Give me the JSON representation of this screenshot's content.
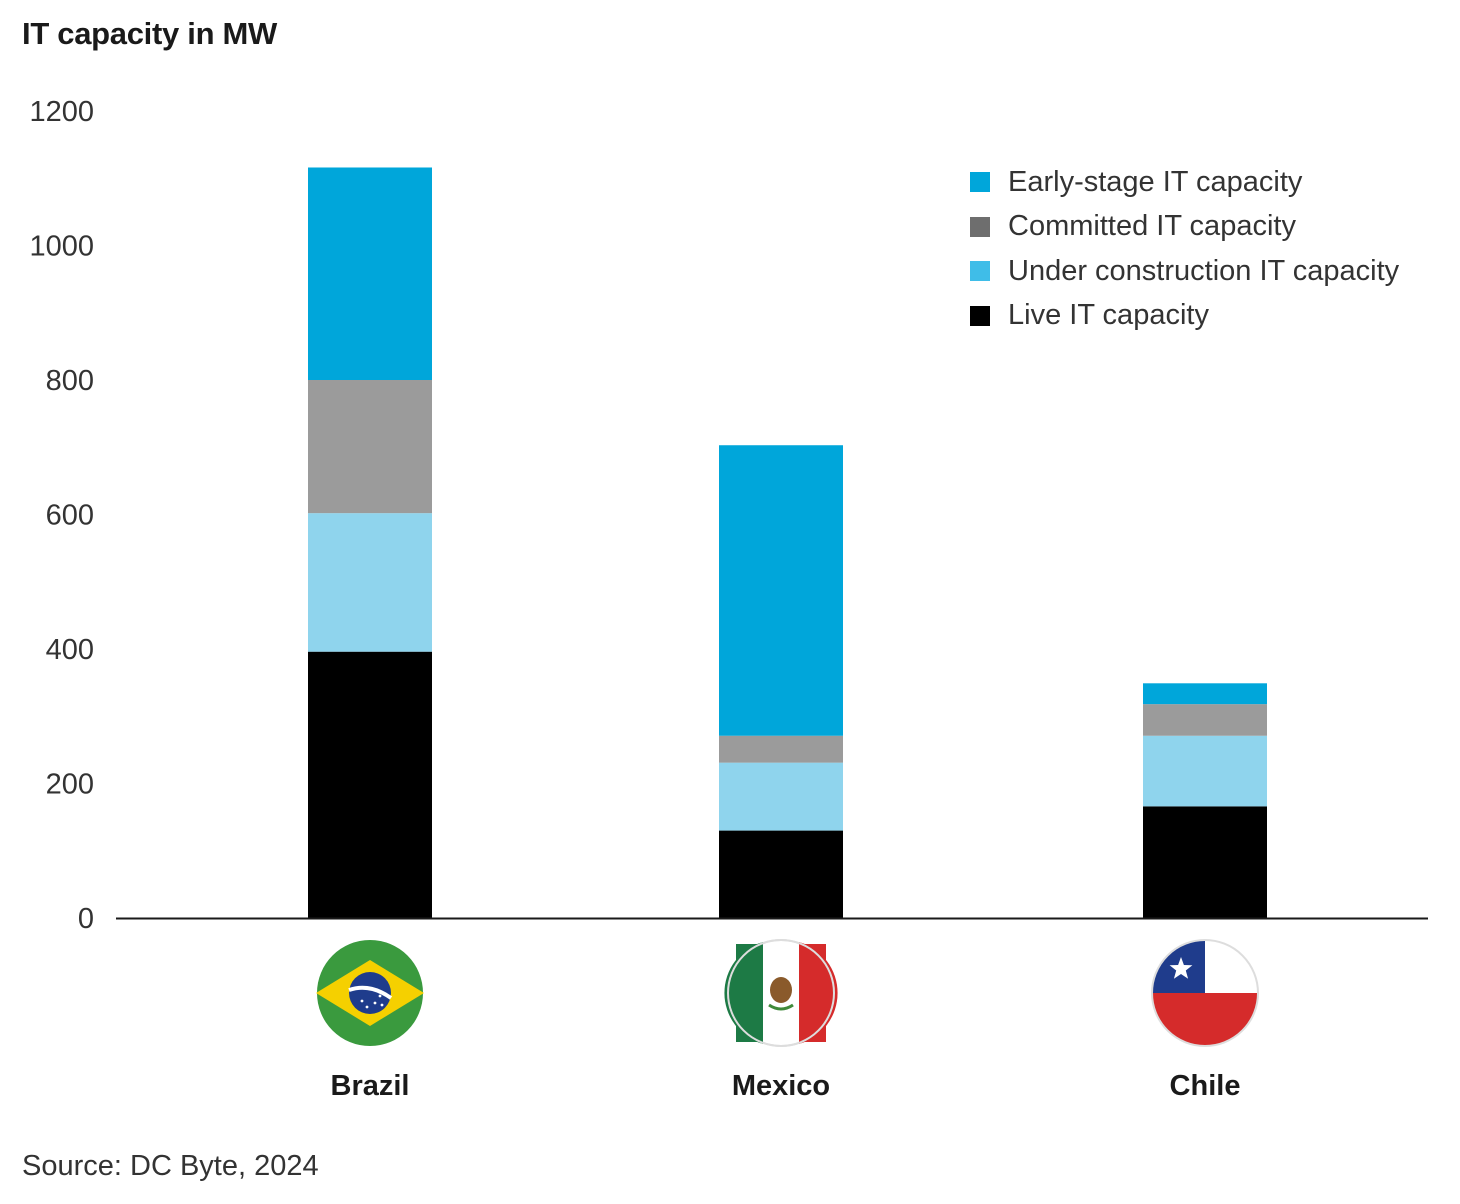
{
  "chart_data": {
    "type": "bar",
    "stacked": true,
    "title": "IT capacity in MW",
    "xlabel": "",
    "ylabel": "IT capacity in MW",
    "ylim": [
      0,
      1200
    ],
    "yticks": [
      0,
      200,
      400,
      600,
      800,
      1000,
      1200
    ],
    "grid": false,
    "legend_position": "top-right",
    "categories": [
      "Brazil",
      "Mexico",
      "Chile"
    ],
    "category_icons": [
      "brazil-flag-icon",
      "mexico-flag-icon",
      "chile-flag-icon"
    ],
    "series": [
      {
        "name": "Live IT capacity",
        "color": "#000000",
        "values": [
          396,
          130,
          166
        ]
      },
      {
        "name": "Under construction IT capacity",
        "color": "#8fd4ed",
        "values": [
          206,
          101,
          105
        ]
      },
      {
        "name": "Committed IT capacity",
        "color": "#9b9b9b",
        "values": [
          198,
          40,
          47
        ]
      },
      {
        "name": "Early-stage IT capacity",
        "color": "#00a6da",
        "values": [
          316,
          432,
          31
        ]
      }
    ],
    "legend_order": [
      3,
      2,
      1,
      0
    ],
    "source": "Source: DC Byte, 2024"
  }
}
